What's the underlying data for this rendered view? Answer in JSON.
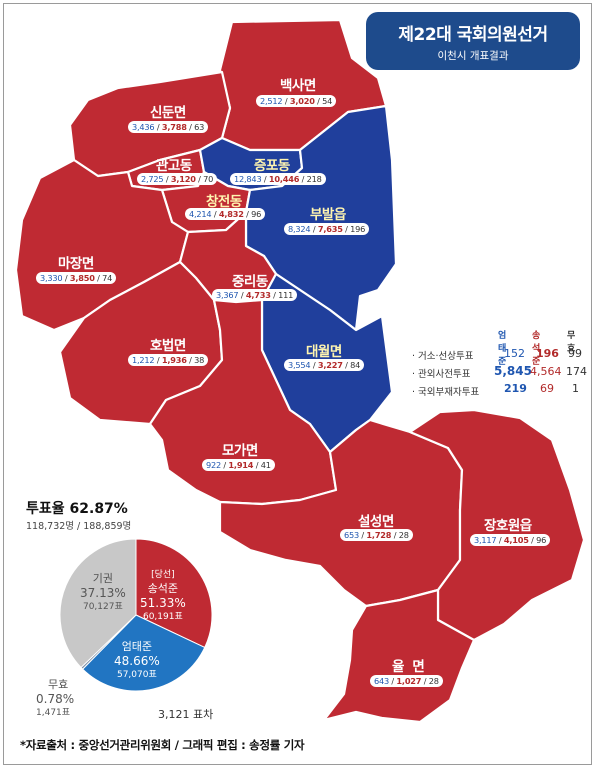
{
  "header": {
    "title": "제22대 국회의원선거",
    "subtitle": "이천시 개표결과"
  },
  "colors": {
    "winner_red": "#bf2a33",
    "opponent_blue": "#203f9c",
    "header_navy": "#1e4b8c",
    "pie_gray": "#c8c8c8",
    "pie_blue": "#2175c2"
  },
  "regions": [
    {
      "name": "백사면",
      "a": "2,512",
      "b": "3,020",
      "c": "54",
      "party": "red"
    },
    {
      "name": "신둔면",
      "a": "3,436",
      "b": "3,788",
      "c": "63",
      "party": "red"
    },
    {
      "name": "관고동",
      "a": "2,725",
      "b": "3,120",
      "c": "70",
      "party": "red"
    },
    {
      "name": "증포동",
      "a": "12,843",
      "b": "10,446",
      "c": "218",
      "party": "blue"
    },
    {
      "name": "창전동",
      "a": "4,214",
      "b": "4,832",
      "c": "96",
      "party": "red"
    },
    {
      "name": "부발읍",
      "a": "8,324",
      "b": "7,635",
      "c": "196",
      "party": "blue"
    },
    {
      "name": "마장면",
      "a": "3,330",
      "b": "3,850",
      "c": "74",
      "party": "red"
    },
    {
      "name": "중리동",
      "a": "3,367",
      "b": "4,733",
      "c": "111",
      "party": "red"
    },
    {
      "name": "호법면",
      "a": "1,212",
      "b": "1,936",
      "c": "38",
      "party": "red"
    },
    {
      "name": "대월면",
      "a": "3,554",
      "b": "3,227",
      "c": "84",
      "party": "blue"
    },
    {
      "name": "모가면",
      "a": "922",
      "b": "1,914",
      "c": "41",
      "party": "red"
    },
    {
      "name": "설성면",
      "a": "653",
      "b": "1,728",
      "c": "28",
      "party": "red"
    },
    {
      "name": "장호원읍",
      "a": "3,117",
      "b": "4,105",
      "c": "96",
      "party": "red"
    },
    {
      "name": "율  면",
      "a": "643",
      "b": "1,027",
      "c": "28",
      "party": "red"
    }
  ],
  "legend": {
    "headers": [
      "엄태준",
      "송석준",
      "무효"
    ],
    "rows": [
      {
        "label": "· 거소·선상투표",
        "a": "152",
        "b": "196",
        "c": "99"
      },
      {
        "label": "· 관외사전투표",
        "a": "5,845",
        "b": "4,564",
        "c": "174"
      },
      {
        "label": "· 국외부재자투표",
        "a": "219",
        "b": "69",
        "c": "1"
      }
    ]
  },
  "turnout": {
    "label": "투표율 62.87%",
    "detail": "118,732명 / 188,859명"
  },
  "pie": {
    "slices": [
      {
        "name": "송석준",
        "tag": "[당선]",
        "pct": "51.33%",
        "votes": "60,191표",
        "value": 51.33,
        "color": "#bf2a33"
      },
      {
        "name": "엄태준",
        "tag": "",
        "pct": "48.66%",
        "votes": "57,070표",
        "value": 48.66,
        "color": "#2175c2"
      },
      {
        "name": "무효",
        "tag": "",
        "pct": "0.78%",
        "votes": "1,471표",
        "value": 0.78,
        "color": "#7b8fa6"
      },
      {
        "name": "기권",
        "tag": "",
        "pct": "37.13%",
        "votes": "70,127표",
        "value": 37.13,
        "color": "#c8c8c8"
      }
    ],
    "diff": "3,121 표차"
  },
  "footer": "*자료출처 : 중앙선거관리위원회 / 그래픽 편집 : 송정률 기자"
}
